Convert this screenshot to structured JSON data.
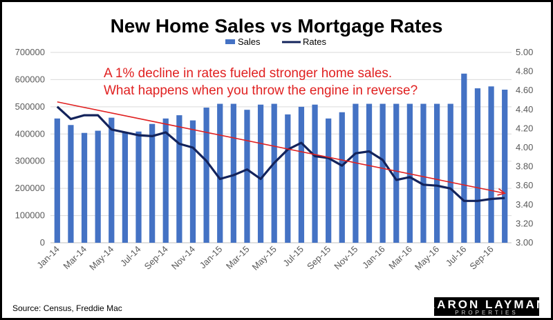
{
  "chart_data": {
    "type": "bar",
    "title": "New Home Sales vs Mortgage Rates",
    "annotation": [
      "A 1% decline in rates fueled stronger home sales.",
      "What happens when you throw the engine in reverse?"
    ],
    "legend": {
      "position": "top",
      "items": [
        "Sales",
        "Rates"
      ]
    },
    "source": "Source: Census, Freddie Mac",
    "logo": {
      "line1": "AARON LAYMAN",
      "line2": "PROPERTIES"
    },
    "categories": [
      "Jan-14",
      "Feb-14",
      "Mar-14",
      "Apr-14",
      "May-14",
      "Jun-14",
      "Jul-14",
      "Aug-14",
      "Sep-14",
      "Oct-14",
      "Nov-14",
      "Dec-14",
      "Jan-15",
      "Feb-15",
      "Mar-15",
      "Apr-15",
      "May-15",
      "Jun-15",
      "Jul-15",
      "Aug-15",
      "Sep-15",
      "Oct-15",
      "Nov-15",
      "Dec-15",
      "Jan-16",
      "Feb-16",
      "Mar-16",
      "Apr-16",
      "May-16",
      "Jun-16",
      "Jul-16",
      "Aug-16",
      "Sep-16",
      "Oct-16"
    ],
    "x_tick_labels": [
      "Jan-14",
      "Mar-14",
      "May-14",
      "Jul-14",
      "Sep-14",
      "Nov-14",
      "Jan-15",
      "Mar-15",
      "May-15",
      "Jul-15",
      "Sep-15",
      "Nov-15",
      "Jan-16",
      "Mar-16",
      "May-16",
      "Jul-16",
      "Sep-16"
    ],
    "series": [
      {
        "name": "Sales",
        "type": "bar",
        "axis": "left",
        "color": "#4472c4",
        "values": [
          457000,
          433000,
          404000,
          412000,
          460000,
          406000,
          409000,
          437000,
          457000,
          469000,
          450000,
          497000,
          511000,
          511000,
          489000,
          508000,
          511000,
          472000,
          500000,
          508000,
          457000,
          480000,
          511000,
          511000,
          511000,
          511000,
          511000,
          511000,
          511000,
          511000,
          622000,
          568000,
          575000,
          563000
        ]
      },
      {
        "name": "Rates",
        "type": "line",
        "axis": "right",
        "color": "#13235b",
        "values": [
          4.43,
          4.3,
          4.34,
          4.34,
          4.19,
          4.16,
          4.13,
          4.12,
          4.16,
          4.04,
          4.0,
          3.86,
          3.67,
          3.71,
          3.77,
          3.67,
          3.84,
          3.98,
          4.05,
          3.91,
          3.89,
          3.81,
          3.94,
          3.96,
          3.87,
          3.66,
          3.69,
          3.61,
          3.6,
          3.57,
          3.44,
          3.44,
          3.46,
          3.47
        ]
      }
    ],
    "y_left": {
      "min": 0,
      "max": 700000,
      "step": 100000,
      "tick_labels": [
        "0",
        "100000",
        "200000",
        "300000",
        "400000",
        "500000",
        "600000",
        "700000"
      ]
    },
    "y_right": {
      "min": 3.0,
      "max": 5.0,
      "step": 0.2,
      "tick_labels": [
        "3.00",
        "3.20",
        "3.40",
        "3.60",
        "3.80",
        "4.00",
        "4.20",
        "4.40",
        "4.60",
        "4.80",
        "5.00"
      ]
    },
    "trend_arrow": {
      "color": "#e02020",
      "from": {
        "category": "Jan-14",
        "rate": 4.48
      },
      "to": {
        "category": "Oct-16",
        "rate": 3.52
      }
    },
    "grid": true
  }
}
